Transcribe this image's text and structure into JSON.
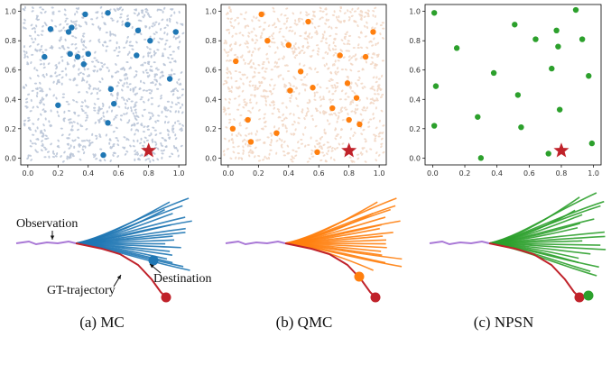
{
  "figure": {
    "captions": [
      "(a) MC",
      "(b) QMC",
      "(c) NPSN"
    ],
    "annotations": {
      "observation": "Observation",
      "destination": "Destination",
      "gt_trajectory": "GT-trajectory"
    }
  },
  "chart_data": [
    {
      "type": "scatter",
      "name": "MC",
      "xlim": [
        0,
        1
      ],
      "ylim": [
        0,
        1
      ],
      "xticks": [
        "0.0",
        "0.2",
        "0.4",
        "0.6",
        "0.8",
        "1.0"
      ],
      "yticks": [
        "0.0",
        "0.2",
        "0.4",
        "0.6",
        "0.8",
        "1.0"
      ],
      "background_samples": "dense",
      "background_color": "#b7c3d6",
      "point_color": "#1f77b4",
      "points": [
        {
          "x": 0.38,
          "y": 0.98
        },
        {
          "x": 0.53,
          "y": 0.99
        },
        {
          "x": 0.66,
          "y": 0.91
        },
        {
          "x": 0.15,
          "y": 0.88
        },
        {
          "x": 0.27,
          "y": 0.86
        },
        {
          "x": 0.29,
          "y": 0.89
        },
        {
          "x": 0.73,
          "y": 0.87
        },
        {
          "x": 0.81,
          "y": 0.8
        },
        {
          "x": 0.98,
          "y": 0.86
        },
        {
          "x": 0.72,
          "y": 0.7
        },
        {
          "x": 0.11,
          "y": 0.69
        },
        {
          "x": 0.28,
          "y": 0.71
        },
        {
          "x": 0.33,
          "y": 0.69
        },
        {
          "x": 0.4,
          "y": 0.71
        },
        {
          "x": 0.37,
          "y": 0.64
        },
        {
          "x": 0.94,
          "y": 0.54
        },
        {
          "x": 0.55,
          "y": 0.47
        },
        {
          "x": 0.2,
          "y": 0.36
        },
        {
          "x": 0.57,
          "y": 0.37
        },
        {
          "x": 0.53,
          "y": 0.24
        },
        {
          "x": 0.5,
          "y": 0.02
        }
      ],
      "target_star": {
        "x": 0.8,
        "y": 0.05,
        "color": "#c0222a"
      }
    },
    {
      "type": "scatter",
      "name": "QMC",
      "xlim": [
        0,
        1
      ],
      "ylim": [
        0,
        1
      ],
      "xticks": [
        "0.0",
        "0.2",
        "0.4",
        "0.6",
        "0.8",
        "1.0"
      ],
      "yticks": [
        "0.0",
        "0.2",
        "0.4",
        "0.6",
        "0.8",
        "1.0"
      ],
      "background_samples": "dense",
      "background_color": "#f1d6c3",
      "point_color": "#ff7f0e",
      "points": [
        {
          "x": 0.22,
          "y": 0.98
        },
        {
          "x": 0.53,
          "y": 0.93
        },
        {
          "x": 0.96,
          "y": 0.86
        },
        {
          "x": 0.26,
          "y": 0.8
        },
        {
          "x": 0.4,
          "y": 0.77
        },
        {
          "x": 0.74,
          "y": 0.7
        },
        {
          "x": 0.91,
          "y": 0.69
        },
        {
          "x": 0.05,
          "y": 0.66
        },
        {
          "x": 0.48,
          "y": 0.59
        },
        {
          "x": 0.79,
          "y": 0.51
        },
        {
          "x": 0.56,
          "y": 0.48
        },
        {
          "x": 0.41,
          "y": 0.46
        },
        {
          "x": 0.85,
          "y": 0.41
        },
        {
          "x": 0.69,
          "y": 0.34
        },
        {
          "x": 0.13,
          "y": 0.26
        },
        {
          "x": 0.8,
          "y": 0.26
        },
        {
          "x": 0.87,
          "y": 0.23
        },
        {
          "x": 0.03,
          "y": 0.2
        },
        {
          "x": 0.32,
          "y": 0.17
        },
        {
          "x": 0.15,
          "y": 0.11
        },
        {
          "x": 0.59,
          "y": 0.04
        }
      ],
      "target_star": {
        "x": 0.8,
        "y": 0.05,
        "color": "#c0222a"
      }
    },
    {
      "type": "scatter",
      "name": "NPSN",
      "xlim": [
        0,
        1
      ],
      "ylim": [
        0,
        1
      ],
      "xticks": [
        "0.0",
        "0.2",
        "0.4",
        "0.6",
        "0.8",
        "1.0"
      ],
      "yticks": [
        "0.0",
        "0.2",
        "0.4",
        "0.6",
        "0.8",
        "1.0"
      ],
      "background_samples": "none",
      "background_color": "",
      "point_color": "#2ca02c",
      "points": [
        {
          "x": 0.01,
          "y": 0.99
        },
        {
          "x": 0.89,
          "y": 1.01
        },
        {
          "x": 0.51,
          "y": 0.91
        },
        {
          "x": 0.77,
          "y": 0.87
        },
        {
          "x": 0.64,
          "y": 0.81
        },
        {
          "x": 0.93,
          "y": 0.81
        },
        {
          "x": 0.15,
          "y": 0.75
        },
        {
          "x": 0.78,
          "y": 0.76
        },
        {
          "x": 0.74,
          "y": 0.61
        },
        {
          "x": 0.38,
          "y": 0.58
        },
        {
          "x": 0.97,
          "y": 0.56
        },
        {
          "x": 0.02,
          "y": 0.49
        },
        {
          "x": 0.53,
          "y": 0.43
        },
        {
          "x": 0.79,
          "y": 0.33
        },
        {
          "x": 0.28,
          "y": 0.28
        },
        {
          "x": 0.01,
          "y": 0.22
        },
        {
          "x": 0.55,
          "y": 0.21
        },
        {
          "x": 0.99,
          "y": 0.1
        },
        {
          "x": 0.72,
          "y": 0.03
        },
        {
          "x": 0.3,
          "y": 0.0
        }
      ],
      "target_star": {
        "x": 0.8,
        "y": 0.05,
        "color": "#c0222a"
      }
    }
  ],
  "trajectories": [
    {
      "name": "MC",
      "color": "#1f77b4",
      "end_marker": "blue"
    },
    {
      "name": "QMC",
      "color": "#ff7f0e",
      "end_marker": "orange"
    },
    {
      "name": "NPSN",
      "color": "#2ca02c",
      "end_marker": "green"
    }
  ],
  "colors": {
    "observation": "#a978d6",
    "gt": "#c0222a"
  }
}
